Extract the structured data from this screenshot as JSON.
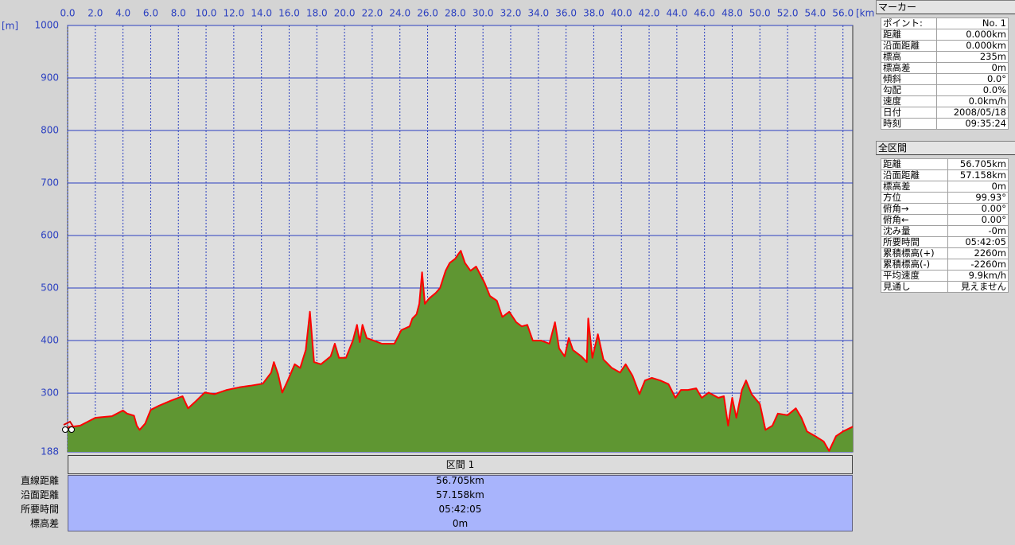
{
  "chart_data": {
    "type": "area",
    "x_unit_label": "[km]",
    "y_unit_label": "[m]",
    "line_color": "#ff0000",
    "fill_color": "#5f9632",
    "grid": true,
    "xlim": [
      0,
      56.705
    ],
    "ylim": [
      188,
      1000
    ],
    "xticks": [
      {
        "value": 0,
        "label": "0.0"
      },
      {
        "value": 2,
        "label": "2.0"
      },
      {
        "value": 4,
        "label": "4.0"
      },
      {
        "value": 6,
        "label": "6.0"
      },
      {
        "value": 8,
        "label": "8.0"
      },
      {
        "value": 10,
        "label": "10.0"
      },
      {
        "value": 12,
        "label": "12.0"
      },
      {
        "value": 14,
        "label": "14.0"
      },
      {
        "value": 16,
        "label": "16.0"
      },
      {
        "value": 18,
        "label": "18.0"
      },
      {
        "value": 20,
        "label": "20.0"
      },
      {
        "value": 22,
        "label": "22.0"
      },
      {
        "value": 24,
        "label": "24.0"
      },
      {
        "value": 26,
        "label": "26.0"
      },
      {
        "value": 28,
        "label": "28.0"
      },
      {
        "value": 30,
        "label": "30.0"
      },
      {
        "value": 32,
        "label": "32.0"
      },
      {
        "value": 34,
        "label": "34.0"
      },
      {
        "value": 36,
        "label": "36.0"
      },
      {
        "value": 38,
        "label": "38.0"
      },
      {
        "value": 40,
        "label": "40.0"
      },
      {
        "value": 42,
        "label": "42.0"
      },
      {
        "value": 44,
        "label": "44.0"
      },
      {
        "value": 46,
        "label": "46.0"
      },
      {
        "value": 48,
        "label": "48.0"
      },
      {
        "value": 50,
        "label": "50.0"
      },
      {
        "value": 52,
        "label": "52.0"
      },
      {
        "value": 54,
        "label": "54.0"
      },
      {
        "value": 56,
        "label": "56.0"
      }
    ],
    "yticks": [
      188,
      300,
      400,
      500,
      600,
      700,
      800,
      900,
      1000
    ],
    "x": [
      0,
      0.9,
      2.0,
      3.2,
      4.0,
      4.3,
      4.8,
      5.0,
      5.2,
      5.6,
      6.0,
      6.6,
      7.5,
      8.3,
      8.7,
      9.2,
      9.9,
      10.6,
      11.5,
      12.4,
      13.2,
      14.1,
      14.7,
      14.9,
      15.2,
      15.5,
      15.9,
      16.4,
      16.8,
      17.2,
      17.5,
      17.8,
      18.3,
      19.0,
      19.3,
      19.6,
      20.1,
      20.6,
      20.9,
      21.1,
      21.3,
      21.6,
      22.1,
      22.7,
      23.6,
      24.1,
      24.7,
      24.9,
      25.2,
      25.4,
      25.6,
      25.8,
      26.1,
      26.6,
      26.9,
      27.3,
      27.6,
      28.0,
      28.2,
      28.4,
      28.7,
      29.1,
      29.5,
      29.8,
      30.1,
      30.5,
      31.0,
      31.4,
      31.9,
      32.4,
      32.8,
      33.2,
      33.6,
      34.2,
      34.8,
      35.2,
      35.5,
      35.9,
      36.2,
      36.5,
      37.1,
      37.5,
      37.6,
      37.9,
      38.3,
      38.7,
      39.3,
      39.9,
      40.3,
      40.8,
      41.3,
      41.7,
      42.2,
      42.8,
      43.4,
      43.9,
      44.3,
      44.8,
      45.4,
      45.8,
      46.3,
      47.0,
      47.4,
      47.7,
      48.0,
      48.3,
      48.7,
      49.0,
      49.4,
      50.0,
      50.4,
      50.9,
      51.3,
      52.0,
      52.6,
      53.0,
      53.4,
      54.0,
      54.6,
      55.0,
      55.5,
      56.0,
      56.705
    ],
    "series": [
      {
        "name": "標高",
        "values": [
          235,
          238,
          253,
          256,
          267,
          261,
          257,
          238,
          230,
          242,
          268,
          276,
          286,
          294,
          271,
          283,
          301,
          298,
          306,
          311,
          314,
          318,
          339,
          359,
          336,
          301,
          324,
          355,
          348,
          382,
          455,
          359,
          355,
          370,
          394,
          367,
          367,
          400,
          430,
          397,
          430,
          405,
          400,
          394,
          394,
          420,
          427,
          442,
          450,
          470,
          530,
          470,
          480,
          491,
          500,
          533,
          548,
          556,
          564,
          571,
          548,
          533,
          541,
          526,
          511,
          485,
          476,
          445,
          455,
          435,
          427,
          430,
          400,
          400,
          394,
          435,
          385,
          370,
          405,
          382,
          370,
          359,
          442,
          367,
          412,
          364,
          348,
          339,
          355,
          333,
          298,
          324,
          329,
          324,
          317,
          291,
          306,
          306,
          309,
          291,
          301,
          291,
          294,
          238,
          291,
          253,
          306,
          324,
          298,
          279,
          230,
          238,
          261,
          258,
          271,
          253,
          227,
          218,
          208,
          190,
          218,
          227,
          236
        ]
      }
    ]
  },
  "marker_panel": {
    "title": "マーカー",
    "rows": [
      [
        "ポイント:",
        "No. 1"
      ],
      [
        "距離",
        "0.000km"
      ],
      [
        "沿面距離",
        "0.000km"
      ],
      [
        "標高",
        "235m"
      ],
      [
        "標高差",
        "0m"
      ],
      [
        "傾斜",
        "0.0°"
      ],
      [
        "勾配",
        "0.0%"
      ],
      [
        "速度",
        "0.0km/h"
      ],
      [
        "日付",
        "2008/05/18"
      ],
      [
        "時刻",
        "09:35:24"
      ]
    ]
  },
  "total_panel": {
    "title": "全区間",
    "rows": [
      [
        "距離",
        "56.705km"
      ],
      [
        "沿面距離",
        "57.158km"
      ],
      [
        "標高差",
        "0m"
      ],
      [
        "方位",
        "99.93°"
      ],
      [
        "俯角→",
        "0.00°"
      ],
      [
        "俯角←",
        "0.00°"
      ],
      [
        "沈み量",
        "-0m"
      ],
      [
        "所要時間",
        "05:42:05"
      ],
      [
        "累積標高(+)",
        "2260m"
      ],
      [
        "累積標高(-)",
        "-2260m"
      ],
      [
        "平均速度",
        "9.9km/h"
      ],
      [
        "見通し",
        "見えません"
      ]
    ]
  },
  "segment_table": {
    "header": "区間 1",
    "rows": [
      [
        "直線距離",
        "56.705km"
      ],
      [
        "沿面距離",
        "57.158km"
      ],
      [
        "所要時間",
        "05:42:05"
      ],
      [
        "標高差",
        "0m"
      ]
    ]
  }
}
